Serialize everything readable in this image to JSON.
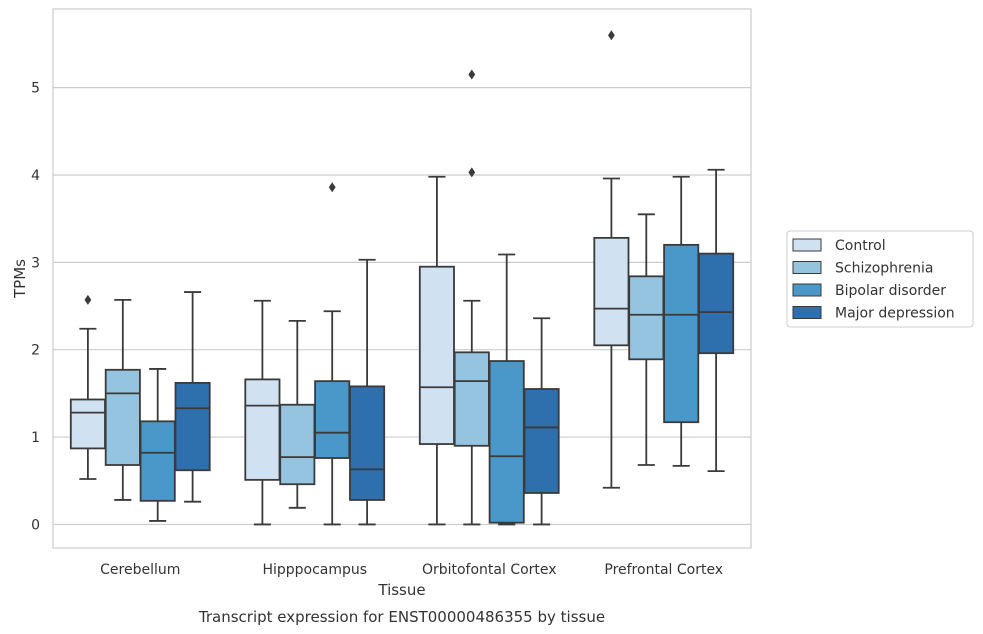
{
  "chart_data": {
    "type": "box",
    "title": "",
    "caption": "Transcript expression for ENST00000486355 by tissue",
    "xlabel": "Tissue",
    "ylabel": "TPMs",
    "ylim": [
      -0.27,
      5.9
    ],
    "yticks": [
      0,
      1,
      2,
      3,
      4,
      5
    ],
    "grid": true,
    "legend_position": "right",
    "categories": [
      "Cerebellum",
      "Hipppocampus",
      "Orbitofontal Cortex",
      "Prefrontal Cortex"
    ],
    "series": [
      {
        "name": "Control",
        "color": "#d0e1f2",
        "boxes": [
          {
            "whislo": 0.52,
            "q1": 0.87,
            "med": 1.28,
            "q3": 1.43,
            "whishi": 2.24,
            "fliers": [
              2.57
            ]
          },
          {
            "whislo": 0.0,
            "q1": 0.51,
            "med": 1.36,
            "q3": 1.66,
            "whishi": 2.56,
            "fliers": []
          },
          {
            "whislo": 0.0,
            "q1": 0.92,
            "med": 1.57,
            "q3": 2.95,
            "whishi": 3.98,
            "fliers": []
          },
          {
            "whislo": 0.42,
            "q1": 2.05,
            "med": 2.47,
            "q3": 3.28,
            "whishi": 3.96,
            "fliers": [
              5.6
            ]
          }
        ]
      },
      {
        "name": "Schizophrenia",
        "color": "#94c4df",
        "boxes": [
          {
            "whislo": 0.28,
            "q1": 0.68,
            "med": 1.5,
            "q3": 1.77,
            "whishi": 2.57,
            "fliers": []
          },
          {
            "whislo": 0.19,
            "q1": 0.46,
            "med": 0.77,
            "q3": 1.37,
            "whishi": 2.33,
            "fliers": []
          },
          {
            "whislo": 0.0,
            "q1": 0.9,
            "med": 1.64,
            "q3": 1.97,
            "whishi": 2.56,
            "fliers": [
              4.03,
              5.15
            ]
          },
          {
            "whislo": 0.68,
            "q1": 1.89,
            "med": 2.4,
            "q3": 2.84,
            "whishi": 3.55,
            "fliers": []
          }
        ]
      },
      {
        "name": "Bipolar disorder",
        "color": "#4a98c9",
        "boxes": [
          {
            "whislo": 0.04,
            "q1": 0.27,
            "med": 0.82,
            "q3": 1.18,
            "whishi": 1.78,
            "fliers": []
          },
          {
            "whislo": 0.0,
            "q1": 0.76,
            "med": 1.05,
            "q3": 1.64,
            "whishi": 2.44,
            "fliers": [
              3.86
            ]
          },
          {
            "whislo": 0.0,
            "q1": 0.02,
            "med": 0.78,
            "q3": 1.87,
            "whishi": 3.09,
            "fliers": []
          },
          {
            "whislo": 0.67,
            "q1": 1.17,
            "med": 2.4,
            "q3": 3.2,
            "whishi": 3.98,
            "fliers": []
          }
        ]
      },
      {
        "name": "Major depression",
        "color": "#2e6fad",
        "boxes": [
          {
            "whislo": 0.26,
            "q1": 0.62,
            "med": 1.33,
            "q3": 1.62,
            "whishi": 2.66,
            "fliers": []
          },
          {
            "whislo": 0.0,
            "q1": 0.28,
            "med": 0.63,
            "q3": 1.58,
            "whishi": 3.03,
            "fliers": []
          },
          {
            "whislo": 0.0,
            "q1": 0.36,
            "med": 1.11,
            "q3": 1.55,
            "whishi": 2.36,
            "fliers": []
          },
          {
            "whislo": 0.61,
            "q1": 1.96,
            "med": 2.43,
            "q3": 3.1,
            "whishi": 4.06,
            "fliers": []
          }
        ]
      }
    ]
  }
}
